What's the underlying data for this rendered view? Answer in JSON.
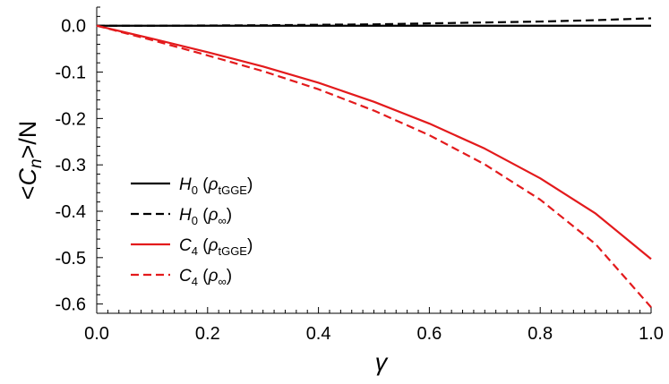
{
  "chart_data": {
    "type": "line",
    "title": "",
    "xlabel": "γ",
    "ylabel": "<Cn>/N",
    "ylabel_parts": {
      "left": "<",
      "symbol": "C",
      "subscript": "n",
      "right": ">/N"
    },
    "xlim": [
      0.0,
      1.0
    ],
    "ylim": [
      -0.62,
      0.04
    ],
    "grid": false,
    "legend_position": "lower-left",
    "x_ticks": [
      "0.0",
      "0.2",
      "0.4",
      "0.6",
      "0.8",
      "1.0"
    ],
    "y_ticks": [
      "0.0",
      "-0.1",
      "-0.2",
      "-0.3",
      "-0.4",
      "-0.5",
      "-0.6"
    ],
    "x": [
      0.0,
      0.1,
      0.2,
      0.3,
      0.4,
      0.5,
      0.6,
      0.7,
      0.8,
      0.9,
      1.0
    ],
    "series": [
      {
        "name": "H0 (ρtGGE)",
        "legend": {
          "symbol": "H",
          "subscript": "0",
          "rho_sub": "tGGE"
        },
        "color": "#000000",
        "dash": "solid",
        "values": [
          0.0,
          0.0,
          0.0,
          0.0,
          0.0,
          0.0,
          0.0,
          0.0,
          0.0,
          0.0,
          0.0
        ]
      },
      {
        "name": "H0 (ρ∞)",
        "legend": {
          "symbol": "H",
          "subscript": "0",
          "rho_sub": "∞"
        },
        "color": "#000000",
        "dash": "dashed",
        "values": [
          0.0,
          0.0,
          0.0005,
          0.001,
          0.002,
          0.003,
          0.005,
          0.007,
          0.009,
          0.012,
          0.016
        ]
      },
      {
        "name": "C4 (ρtGGE)",
        "legend": {
          "symbol": "C",
          "subscript": "4",
          "rho_sub": "tGGE"
        },
        "color": "#e31a1c",
        "dash": "solid",
        "values": [
          0.0,
          -0.028,
          -0.057,
          -0.088,
          -0.123,
          -0.164,
          -0.211,
          -0.265,
          -0.329,
          -0.405,
          -0.503
        ]
      },
      {
        "name": "C4 (ρ∞)",
        "legend": {
          "symbol": "C",
          "subscript": "4",
          "rho_sub": "∞"
        },
        "color": "#e31a1c",
        "dash": "dashed",
        "values": [
          0.0,
          -0.031,
          -0.064,
          -0.098,
          -0.137,
          -0.183,
          -0.236,
          -0.299,
          -0.375,
          -0.471,
          -0.607
        ]
      }
    ]
  }
}
